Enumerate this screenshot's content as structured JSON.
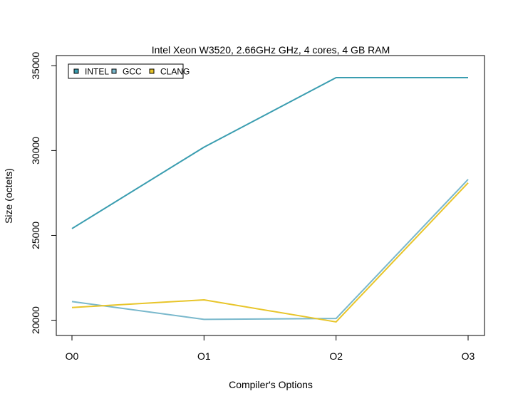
{
  "chart_data": {
    "type": "line",
    "title": "Intel Xeon W3520, 2.66GHz GHz, 4 cores, 4 GB RAM",
    "xlabel": "Compiler's Options",
    "ylabel": "Size (octets)",
    "categories": [
      "O0",
      "O1",
      "O2",
      "O3"
    ],
    "ylim": [
      19100,
      35600
    ],
    "yticks": [
      20000,
      25000,
      30000,
      35000
    ],
    "ytick_labels": [
      "20000",
      "25000",
      "30000",
      "35000"
    ],
    "grid": false,
    "legend_position": "top-left",
    "series": [
      {
        "name": "INTEL",
        "color": "#3a9db0",
        "values": [
          25400,
          30200,
          34300,
          34300
        ]
      },
      {
        "name": "GCC",
        "color": "#79b8cc",
        "values": [
          21100,
          20050,
          20100,
          28300
        ]
      },
      {
        "name": "CLANG",
        "color": "#e8c52a",
        "values": [
          20750,
          21200,
          19900,
          28100
        ]
      }
    ]
  }
}
